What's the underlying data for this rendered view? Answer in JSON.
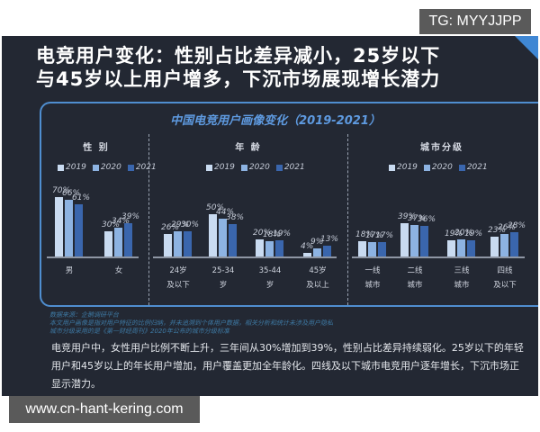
{
  "watermark_tg": "TG: MYYJJPP",
  "watermark_url": "www.cn-hant-kering.com",
  "headline": {
    "line1": "电竞用户变化：性别占比差异减小，25岁以下",
    "line2": "与45岁以上用户增多，下沉市场展现增长潜力"
  },
  "panel_title": "中国电竞用户画像变化（2019-2021）",
  "colors": {
    "2019": "#c9dbf1",
    "2020": "#8db3e2",
    "2021": "#3a66ad",
    "background": "#232833",
    "accent": "#4f8ed0"
  },
  "chart_data": [
    {
      "type": "bar",
      "title": "性 别",
      "categories": [
        "男",
        "女"
      ],
      "series": [
        {
          "name": "2019",
          "values": [
            70,
            30
          ]
        },
        {
          "name": "2020",
          "values": [
            66,
            34
          ]
        },
        {
          "name": "2021",
          "values": [
            61,
            39
          ]
        }
      ],
      "unit": "%"
    },
    {
      "type": "bar",
      "title": "年 龄",
      "categories": [
        "24岁及以下",
        "25-34岁",
        "35-44岁",
        "45岁及以上"
      ],
      "series": [
        {
          "name": "2019",
          "values": [
            26,
            50,
            20,
            4
          ]
        },
        {
          "name": "2020",
          "values": [
            29,
            44,
            18,
            9
          ]
        },
        {
          "name": "2021",
          "values": [
            30,
            38,
            19,
            13
          ]
        }
      ],
      "unit": "%"
    },
    {
      "type": "bar",
      "title": "城市分级",
      "categories": [
        "一线城市",
        "二线城市",
        "三线城市",
        "四线及以下"
      ],
      "series": [
        {
          "name": "2019",
          "values": [
            18,
            39,
            19,
            23
          ]
        },
        {
          "name": "2020",
          "values": [
            17,
            37,
            20,
            26
          ]
        },
        {
          "name": "2021",
          "values": [
            17,
            36,
            19,
            28
          ]
        }
      ],
      "unit": "%"
    }
  ],
  "sections": [
    {
      "title": "性 别",
      "cat_lines": [
        [
          "男",
          ""
        ],
        [
          "女",
          ""
        ]
      ]
    },
    {
      "title": "年 龄",
      "cat_lines": [
        [
          "24岁",
          "及以下"
        ],
        [
          "25-34",
          "岁"
        ],
        [
          "35-44",
          "岁"
        ],
        [
          "45岁",
          "及以上"
        ]
      ]
    },
    {
      "title": "城市分级",
      "cat_lines": [
        [
          "一线",
          "城市"
        ],
        [
          "二线",
          "城市"
        ],
        [
          "三线",
          "城市"
        ],
        [
          "四线",
          "及以下"
        ]
      ]
    }
  ],
  "legend": [
    "2019",
    "2020",
    "2021"
  ],
  "source": {
    "line1": "数据来源：企鹅调研平台",
    "line2": "本文用户画像是指对用户特征的比例归纳，并未追溯到个体用户数据，相关分析和统计未涉及用户隐私",
    "line3": "城市分级采用的是《第一财经周刊》2020年公布的城市分级标准"
  },
  "summary": "电竞用户中，女性用户比例不断上升，三年间从30%增加到39%，性别占比差异持续弱化。25岁以下的年轻用户和45岁以上的年长用户增加，用户覆盖更加全年龄化。四线及以下城市电竞用户逐年增长，下沉市场正显示潜力。"
}
